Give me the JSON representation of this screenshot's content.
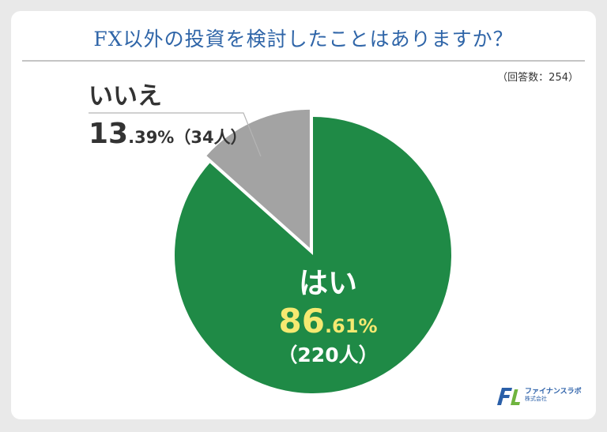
{
  "title": "FX以外の投資を検討したことはありますか？",
  "note": "（回答数：254）",
  "chart_data": {
    "type": "pie",
    "title": "FX以外の投資を検討したことはありますか？",
    "total": 254,
    "slices": [
      {
        "label": "はい",
        "value": 86.61,
        "int": "86",
        "dec": ".61%",
        "count": 220,
        "count_text": "（220人）",
        "color": "#1f8a46"
      },
      {
        "label": "いいえ",
        "value": 13.39,
        "int": "13",
        "dec": ".39%",
        "count": 34,
        "count_text": "（34人）",
        "color": "#a3a3a3"
      }
    ],
    "legend": "none",
    "value_highlight_color": "#f5e971"
  },
  "logo": {
    "mark": "FL",
    "name": "ファイナンスラボ",
    "sub": "株式会社"
  }
}
